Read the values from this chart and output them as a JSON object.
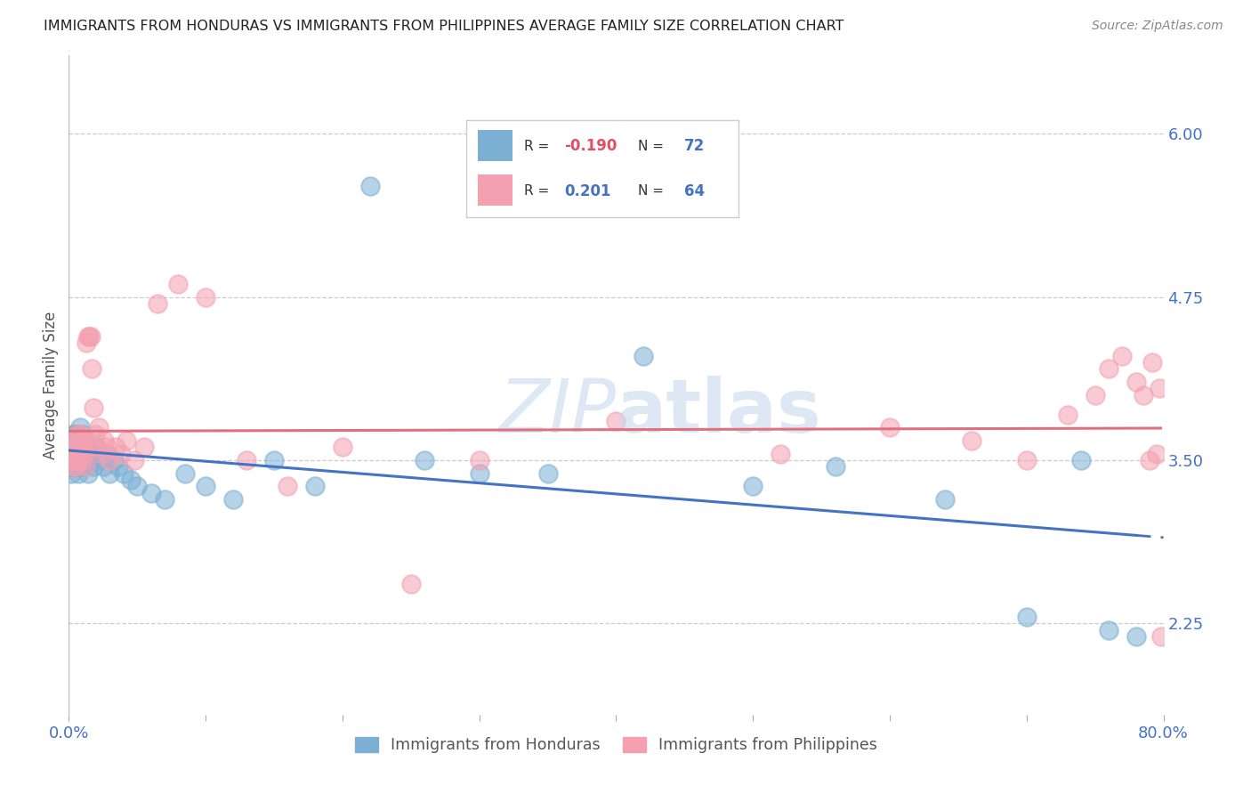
{
  "title": "IMMIGRANTS FROM HONDURAS VS IMMIGRANTS FROM PHILIPPINES AVERAGE FAMILY SIZE CORRELATION CHART",
  "source": "Source: ZipAtlas.com",
  "ylabel": "Average Family Size",
  "yticks": [
    2.25,
    3.5,
    4.75,
    6.0
  ],
  "ytick_color": "#4472c4",
  "xlim": [
    0.0,
    0.8
  ],
  "ylim": [
    1.55,
    6.6
  ],
  "background_color": "#ffffff",
  "grid_color": "#cccccc",
  "honduras_color": "#7bafd4",
  "philippines_color": "#f4a0b0",
  "honduras_line_color": "#4472c4",
  "philippines_line_color": "#e07080",
  "honduras_x": [
    0.001,
    0.001,
    0.002,
    0.002,
    0.002,
    0.003,
    0.003,
    0.003,
    0.003,
    0.003,
    0.004,
    0.004,
    0.004,
    0.004,
    0.005,
    0.005,
    0.005,
    0.005,
    0.006,
    0.006,
    0.006,
    0.007,
    0.007,
    0.007,
    0.007,
    0.008,
    0.008,
    0.008,
    0.009,
    0.009,
    0.01,
    0.01,
    0.01,
    0.011,
    0.011,
    0.012,
    0.012,
    0.013,
    0.014,
    0.015,
    0.016,
    0.017,
    0.018,
    0.02,
    0.022,
    0.025,
    0.028,
    0.03,
    0.033,
    0.036,
    0.04,
    0.045,
    0.05,
    0.06,
    0.07,
    0.085,
    0.1,
    0.12,
    0.15,
    0.18,
    0.22,
    0.26,
    0.3,
    0.35,
    0.42,
    0.5,
    0.56,
    0.64,
    0.7,
    0.74,
    0.76,
    0.78
  ],
  "honduras_y": [
    3.5,
    3.45,
    3.6,
    3.55,
    3.4,
    3.65,
    3.55,
    3.45,
    3.6,
    3.7,
    3.5,
    3.65,
    3.7,
    3.45,
    3.55,
    3.6,
    3.7,
    3.45,
    3.6,
    3.5,
    3.7,
    3.55,
    3.65,
    3.5,
    3.4,
    3.6,
    3.75,
    3.45,
    3.55,
    3.65,
    3.5,
    3.6,
    3.7,
    3.55,
    3.65,
    3.45,
    3.6,
    3.55,
    3.4,
    3.6,
    3.5,
    3.55,
    3.45,
    3.6,
    3.5,
    3.45,
    3.55,
    3.4,
    3.5,
    3.45,
    3.4,
    3.35,
    3.3,
    3.25,
    3.2,
    3.4,
    3.3,
    3.2,
    3.5,
    3.3,
    5.6,
    3.5,
    3.4,
    3.4,
    4.3,
    3.3,
    3.45,
    3.2,
    2.3,
    3.5,
    2.2,
    2.15
  ],
  "philippines_x": [
    0.001,
    0.002,
    0.003,
    0.003,
    0.004,
    0.004,
    0.005,
    0.005,
    0.006,
    0.006,
    0.007,
    0.007,
    0.008,
    0.008,
    0.009,
    0.009,
    0.01,
    0.01,
    0.011,
    0.011,
    0.012,
    0.012,
    0.013,
    0.014,
    0.015,
    0.016,
    0.017,
    0.018,
    0.019,
    0.02,
    0.022,
    0.024,
    0.026,
    0.028,
    0.03,
    0.034,
    0.038,
    0.042,
    0.048,
    0.055,
    0.065,
    0.08,
    0.1,
    0.13,
    0.16,
    0.2,
    0.25,
    0.3,
    0.4,
    0.52,
    0.6,
    0.66,
    0.7,
    0.73,
    0.75,
    0.76,
    0.77,
    0.78,
    0.785,
    0.79,
    0.792,
    0.795,
    0.797,
    0.798
  ],
  "philippines_y": [
    3.5,
    3.55,
    3.6,
    3.45,
    3.65,
    3.5,
    3.6,
    3.45,
    3.55,
    3.7,
    3.6,
    3.5,
    3.65,
    3.7,
    3.55,
    3.6,
    3.5,
    3.65,
    3.55,
    3.6,
    3.45,
    3.65,
    4.4,
    4.45,
    4.45,
    4.45,
    4.2,
    3.9,
    3.7,
    3.6,
    3.75,
    3.55,
    3.65,
    3.6,
    3.5,
    3.6,
    3.55,
    3.65,
    3.5,
    3.6,
    4.7,
    4.85,
    4.75,
    3.5,
    3.3,
    3.6,
    2.55,
    3.5,
    3.8,
    3.55,
    3.75,
    3.65,
    3.5,
    3.85,
    4.0,
    4.2,
    4.3,
    4.1,
    4.0,
    3.5,
    4.25,
    3.55,
    4.05,
    2.15
  ]
}
